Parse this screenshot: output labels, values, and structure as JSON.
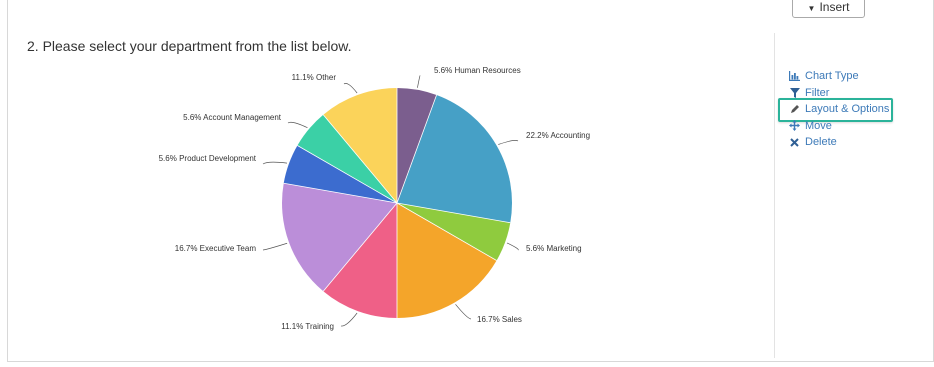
{
  "toolbar": {
    "insert_label": "Insert",
    "insert_icon": "caret-down-icon"
  },
  "question": {
    "text": "2. Please select your department from the list below."
  },
  "menu": {
    "items": [
      {
        "label": "Chart Type",
        "icon": "bar-chart-icon"
      },
      {
        "label": "Filter",
        "icon": "filter-icon"
      },
      {
        "label": "Layout & Options",
        "icon": "pencil-icon"
      },
      {
        "label": "Move",
        "icon": "move-icon"
      },
      {
        "label": "Delete",
        "icon": "x-icon"
      }
    ],
    "highlight_color": "#2bb39a",
    "link_color": "#3d7ab8"
  },
  "chart_data": {
    "type": "pie",
    "slices": [
      {
        "label": "5.6% Human Resources",
        "value": 5.6,
        "color": "#7b5e8e"
      },
      {
        "label": "22.2% Accounting",
        "value": 22.2,
        "color": "#46a0c6"
      },
      {
        "label": "5.6% Marketing",
        "value": 5.6,
        "color": "#8fcb3e"
      },
      {
        "label": "16.7% Sales",
        "value": 16.7,
        "color": "#f4a52a"
      },
      {
        "label": "11.1% Training",
        "value": 11.1,
        "color": "#ef6087"
      },
      {
        "label": "16.7% Executive Team",
        "value": 16.7,
        "color": "#bb8ed9"
      },
      {
        "label": "5.6% Product Development",
        "value": 5.6,
        "color": "#3c6ccf"
      },
      {
        "label": "5.6% Account Management",
        "value": 5.6,
        "color": "#3bd0a6"
      },
      {
        "label": "11.1% Other",
        "value": 11.1,
        "color": "#fbd35a"
      }
    ]
  }
}
